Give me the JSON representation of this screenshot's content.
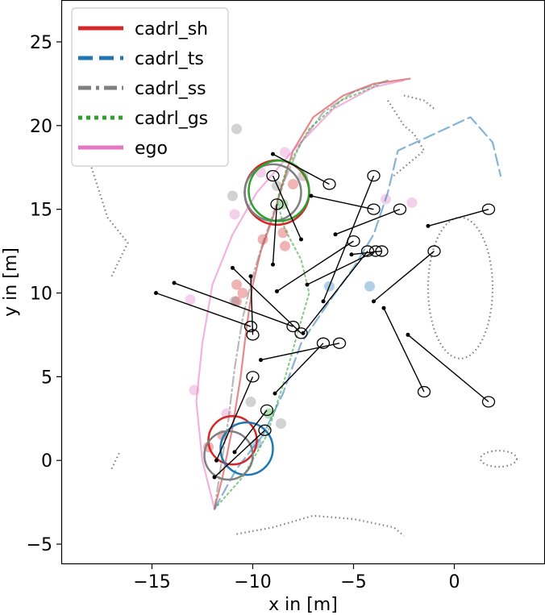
{
  "chart_data": {
    "type": "line",
    "xlabel": "x in [m]",
    "ylabel": "y in [m]",
    "xlim": [
      -19.5,
      4.5
    ],
    "ylim": [
      -6.2,
      27.5
    ],
    "xticks": [
      -15,
      -10,
      -5,
      0
    ],
    "yticks": [
      -5,
      0,
      5,
      10,
      15,
      20,
      25
    ],
    "grid": false,
    "legend_position": "top-left",
    "series": [
      {
        "name": "cadrl_sh",
        "color": "#d62728",
        "style": "solid",
        "path": [
          [
            -11.9,
            -2.9
          ],
          [
            -11.5,
            -1.0
          ],
          [
            -11.0,
            2.0
          ],
          [
            -10.6,
            5.0
          ],
          [
            -10.3,
            8.0
          ],
          [
            -10.0,
            10.5
          ],
          [
            -9.6,
            12.5
          ],
          [
            -9.0,
            14.5
          ],
          [
            -8.6,
            16.2
          ],
          [
            -8.0,
            18.5
          ],
          [
            -7.0,
            20.5
          ],
          [
            -5.5,
            21.8
          ],
          [
            -4.0,
            22.5
          ],
          [
            -2.2,
            22.8
          ]
        ],
        "final_circle": {
          "x": -8.8,
          "y": 16.0,
          "r": 1.6
        },
        "start_circle": {
          "x": -11.0,
          "y": 1.2,
          "r": 1.2
        }
      },
      {
        "name": "cadrl_ts",
        "color": "#1f77b4",
        "style": "dashed",
        "path": [
          [
            -11.9,
            -2.9
          ],
          [
            -10.8,
            -0.5
          ],
          [
            -9.5,
            1.5
          ],
          [
            -8.5,
            4.0
          ],
          [
            -7.6,
            7.0
          ],
          [
            -6.2,
            9.5
          ],
          [
            -5.0,
            11.5
          ],
          [
            -4.0,
            13.5
          ],
          [
            -3.3,
            16.0
          ],
          [
            -2.8,
            18.5
          ],
          [
            -1.0,
            19.5
          ],
          [
            0.8,
            20.5
          ],
          [
            1.9,
            19.0
          ],
          [
            2.3,
            17.0
          ]
        ],
        "final_circle": {
          "x": -10.3,
          "y": 0.7,
          "r": 1.3
        }
      },
      {
        "name": "cadrl_ss",
        "color": "#7f7f7f",
        "style": "dash-dot",
        "path": [
          [
            -11.9,
            -2.9
          ],
          [
            -11.6,
            -0.5
          ],
          [
            -11.2,
            2.5
          ],
          [
            -10.9,
            5.5
          ],
          [
            -10.5,
            8.5
          ],
          [
            -10.0,
            11.0
          ],
          [
            -9.5,
            13.0
          ],
          [
            -8.9,
            15.0
          ],
          [
            -8.4,
            16.8
          ],
          [
            -7.6,
            19.0
          ],
          [
            -6.5,
            20.8
          ],
          [
            -5.0,
            22.0
          ],
          [
            -3.3,
            22.7
          ]
        ],
        "final_circle": {
          "x": -9.0,
          "y": 16.0,
          "r": 1.4
        },
        "start_circle": {
          "x": -11.2,
          "y": 0.3,
          "r": 1.2
        }
      },
      {
        "name": "cadrl_gs",
        "color": "#2ca02c",
        "style": "dotted",
        "path": [
          [
            -11.9,
            -2.9
          ],
          [
            -10.5,
            -1.0
          ],
          [
            -9.3,
            1.5
          ],
          [
            -8.5,
            4.5
          ],
          [
            -7.8,
            7.5
          ],
          [
            -7.2,
            10.0
          ],
          [
            -7.6,
            12.0
          ],
          [
            -8.4,
            13.8
          ],
          [
            -8.8,
            15.5
          ],
          [
            -8.3,
            17.5
          ],
          [
            -7.2,
            19.8
          ],
          [
            -5.6,
            21.5
          ],
          [
            -3.8,
            22.4
          ]
        ],
        "final_circle": {
          "x": -8.7,
          "y": 16.1,
          "r": 1.5
        }
      },
      {
        "name": "ego",
        "color": "#e377c2",
        "style": "solid",
        "path": [
          [
            -11.9,
            -2.9
          ],
          [
            -12.5,
            0.0
          ],
          [
            -12.8,
            3.5
          ],
          [
            -12.5,
            7.0
          ],
          [
            -12.0,
            10.5
          ],
          [
            -11.0,
            13.5
          ],
          [
            -9.8,
            16.0
          ],
          [
            -8.0,
            18.5
          ],
          [
            -6.0,
            21.0
          ],
          [
            -4.0,
            22.3
          ],
          [
            -2.5,
            22.7
          ]
        ]
      }
    ],
    "agents": [
      {
        "from": [
          -11.9,
          -1.0
        ],
        "to": [
          -9.4,
          1.8
        ]
      },
      {
        "from": [
          -11.8,
          0.0
        ],
        "to": [
          -10.0,
          5.0
        ]
      },
      {
        "from": [
          -10.9,
          0.5
        ],
        "to": [
          -9.3,
          3.0
        ]
      },
      {
        "from": [
          -8.9,
          4.0
        ],
        "to": [
          -6.5,
          7.0
        ]
      },
      {
        "from": [
          -9.6,
          6.0
        ],
        "to": [
          -5.7,
          7.0
        ]
      },
      {
        "from": [
          -14.8,
          10.0
        ],
        "to": [
          -10.1,
          8.0
        ]
      },
      {
        "from": [
          -13.9,
          10.6
        ],
        "to": [
          -8.0,
          8.0
        ]
      },
      {
        "from": [
          -11.0,
          11.5
        ],
        "to": [
          -7.6,
          7.6
        ]
      },
      {
        "from": [
          -10.1,
          11.0
        ],
        "to": [
          -10.0,
          7.5
        ]
      },
      {
        "from": [
          -9.0,
          11.7
        ],
        "to": [
          -8.8,
          15.3
        ]
      },
      {
        "from": [
          -8.8,
          10.1
        ],
        "to": [
          -5.0,
          13.1
        ]
      },
      {
        "from": [
          -7.5,
          7.6
        ],
        "to": [
          -4.3,
          12.5
        ]
      },
      {
        "from": [
          -7.3,
          10.5
        ],
        "to": [
          -3.9,
          12.5
        ]
      },
      {
        "from": [
          -6.5,
          9.5
        ],
        "to": [
          -4.0,
          17.0
        ]
      },
      {
        "from": [
          -7.6,
          13.2
        ],
        "to": [
          -9.0,
          17.0
        ]
      },
      {
        "from": [
          -9.0,
          18.3
        ],
        "to": [
          -6.2,
          16.5
        ]
      },
      {
        "from": [
          -7.1,
          15.8
        ],
        "to": [
          -4.0,
          15.0
        ]
      },
      {
        "from": [
          -5.9,
          13.5
        ],
        "to": [
          -2.7,
          15.0
        ]
      },
      {
        "from": [
          -5.1,
          12.3
        ],
        "to": [
          -3.6,
          12.5
        ]
      },
      {
        "from": [
          -4.0,
          9.5
        ],
        "to": [
          -1.0,
          12.5
        ]
      },
      {
        "from": [
          -1.3,
          14.0
        ],
        "to": [
          1.7,
          15.0
        ]
      },
      {
        "from": [
          -3.5,
          9.1
        ],
        "to": [
          -1.5,
          4.1
        ]
      },
      {
        "from": [
          -2.3,
          7.5
        ],
        "to": [
          1.7,
          3.5
        ]
      }
    ],
    "obstacle_outlines": [
      {
        "type": "polyline",
        "points": [
          [
            -10.8,
            -4.4
          ],
          [
            -9.0,
            -4.0
          ],
          [
            -7.0,
            -3.3
          ],
          [
            -5.0,
            -3.5
          ],
          [
            -3.0,
            -4.0
          ],
          [
            -2.5,
            -4.5
          ]
        ]
      },
      {
        "type": "polyline",
        "points": [
          [
            -18.0,
            17.5
          ],
          [
            -17.2,
            14.5
          ],
          [
            -16.2,
            13.0
          ],
          [
            -17.0,
            11.0
          ]
        ]
      },
      {
        "type": "polyline",
        "points": [
          [
            -17.0,
            -0.5
          ],
          [
            -16.6,
            0.5
          ]
        ]
      },
      {
        "type": "polyline",
        "points": [
          [
            -3.3,
            21.5
          ],
          [
            -2.5,
            20.0
          ],
          [
            -2.0,
            19.5
          ],
          [
            -1.5,
            18.5
          ],
          [
            -2.5,
            17.5
          ],
          [
            -3.0,
            17.0
          ]
        ]
      },
      {
        "type": "polyline",
        "points": [
          [
            -2.5,
            21.8
          ],
          [
            -1.5,
            21.5
          ],
          [
            -1.0,
            21.0
          ]
        ]
      },
      {
        "type": "ellipse",
        "cx": 0.3,
        "cy": 10.3,
        "rx": 1.6,
        "ry": 3.5
      },
      {
        "type": "ellipse",
        "cx": 2.2,
        "cy": 0.1,
        "rx": 0.9,
        "ry": 0.4
      }
    ],
    "scatter_markers": [
      {
        "x": -12.2,
        "y": 0.8,
        "color": "#d62728"
      },
      {
        "x": -11.5,
        "y": 1.5,
        "color": "#d62728"
      },
      {
        "x": -10.8,
        "y": 9.5,
        "color": "#d62728"
      },
      {
        "x": -10.5,
        "y": 10.0,
        "color": "#d62728"
      },
      {
        "x": -10.8,
        "y": 10.5,
        "color": "#d62728"
      },
      {
        "x": -8.4,
        "y": 12.8,
        "color": "#d62728"
      },
      {
        "x": -8.5,
        "y": 13.6,
        "color": "#d62728"
      },
      {
        "x": -9.5,
        "y": 13.2,
        "color": "#d62728"
      },
      {
        "x": -8.0,
        "y": 16.5,
        "color": "#d62728"
      },
      {
        "x": -10.1,
        "y": 3.5,
        "color": "#7f7f7f"
      },
      {
        "x": -8.6,
        "y": 2.2,
        "color": "#7f7f7f"
      },
      {
        "x": -10.9,
        "y": 9.5,
        "color": "#7f7f7f"
      },
      {
        "x": -11.0,
        "y": 15.8,
        "color": "#7f7f7f"
      },
      {
        "x": -10.8,
        "y": 19.8,
        "color": "#7f7f7f"
      },
      {
        "x": -7.5,
        "y": 17.0,
        "color": "#7f7f7f"
      },
      {
        "x": -8.8,
        "y": 16.4,
        "color": "#7f7f7f"
      },
      {
        "x": -6.2,
        "y": 10.4,
        "color": "#1f77b4"
      },
      {
        "x": -4.2,
        "y": 10.4,
        "color": "#1f77b4"
      },
      {
        "x": -9.8,
        "y": 1.0,
        "color": "#1f77b4"
      },
      {
        "x": -13.1,
        "y": 9.6,
        "color": "#e377c2"
      },
      {
        "x": -10.9,
        "y": 14.7,
        "color": "#e377c2"
      },
      {
        "x": -12.9,
        "y": 4.2,
        "color": "#e377c2"
      },
      {
        "x": -3.4,
        "y": 15.6,
        "color": "#e377c2"
      },
      {
        "x": -2.1,
        "y": 15.4,
        "color": "#e377c2"
      },
      {
        "x": -8.4,
        "y": 18.4,
        "color": "#e377c2"
      },
      {
        "x": -9.6,
        "y": 17.2,
        "color": "#e377c2"
      },
      {
        "x": -11.3,
        "y": 2.8,
        "color": "#e377c2"
      },
      {
        "x": -9.2,
        "y": 2.8,
        "color": "#2ca02c"
      },
      {
        "x": -8.5,
        "y": 15.3,
        "color": "#2ca02c"
      }
    ]
  }
}
